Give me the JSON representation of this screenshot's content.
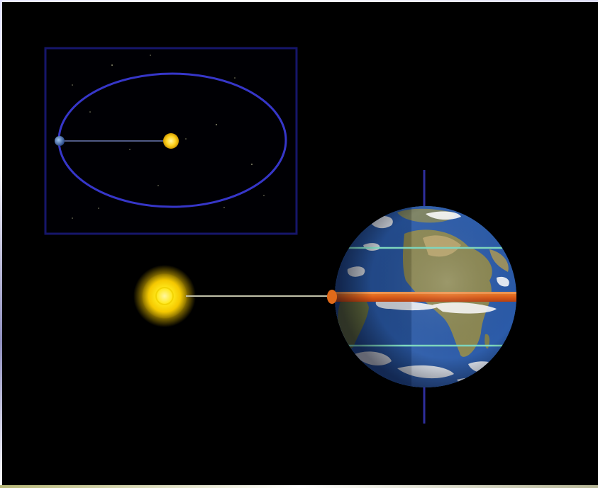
{
  "scene": {
    "background_color": "#000000",
    "inset": {
      "border_color": "#1a1a6e",
      "orbit_color": "#3a3ad6",
      "sun_color": "#ffd21f"
    },
    "main": {
      "sun_color": "#ffe21a",
      "axis_color": "#3a3ab0",
      "equator_band_color": "#e0601a",
      "tropic_line_color": "#7fd9c0",
      "ocean_color": "#2a5aa8",
      "land_color": "#8a8a50"
    }
  }
}
